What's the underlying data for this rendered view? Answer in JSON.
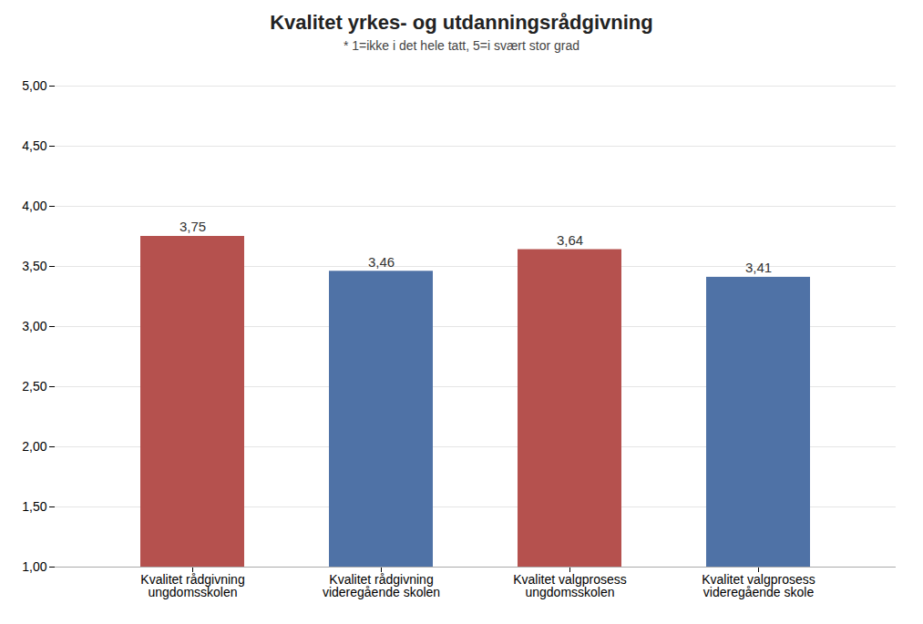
{
  "chart_data": {
    "type": "bar",
    "title": "Kvalitet yrkes- og utdanningsrådgivning",
    "subtitle": "* 1=ikke i det hele tatt, 5=i svært stor grad",
    "categories": [
      "Kvalitet rådgivning\nungdomsskolen",
      "Kvalitet rådgivning\nvideregående skolen",
      "Kvalitet valgprosess\nungdomsskolen",
      "Kvalitet valgprosess\nvideregående skole"
    ],
    "values": [
      3.75,
      3.46,
      3.64,
      3.41
    ],
    "value_labels": [
      "3,75",
      "3,46",
      "3,64",
      "3,41"
    ],
    "data_labels": true,
    "colors": [
      "#b5514e",
      "#4f72a6",
      "#b5514e",
      "#4f72a6"
    ],
    "ylim": [
      1.0,
      5.0
    ],
    "yticks": [
      {
        "value": 1.0,
        "label": "1,00"
      },
      {
        "value": 1.5,
        "label": "1,50"
      },
      {
        "value": 2.0,
        "label": "2,00"
      },
      {
        "value": 2.5,
        "label": "2,50"
      },
      {
        "value": 3.0,
        "label": "3,00"
      },
      {
        "value": 3.5,
        "label": "3,50"
      },
      {
        "value": 4.0,
        "label": "4,00"
      },
      {
        "value": 4.5,
        "label": "4,50"
      },
      {
        "value": 5.0,
        "label": "5,00"
      }
    ],
    "grid": true
  }
}
